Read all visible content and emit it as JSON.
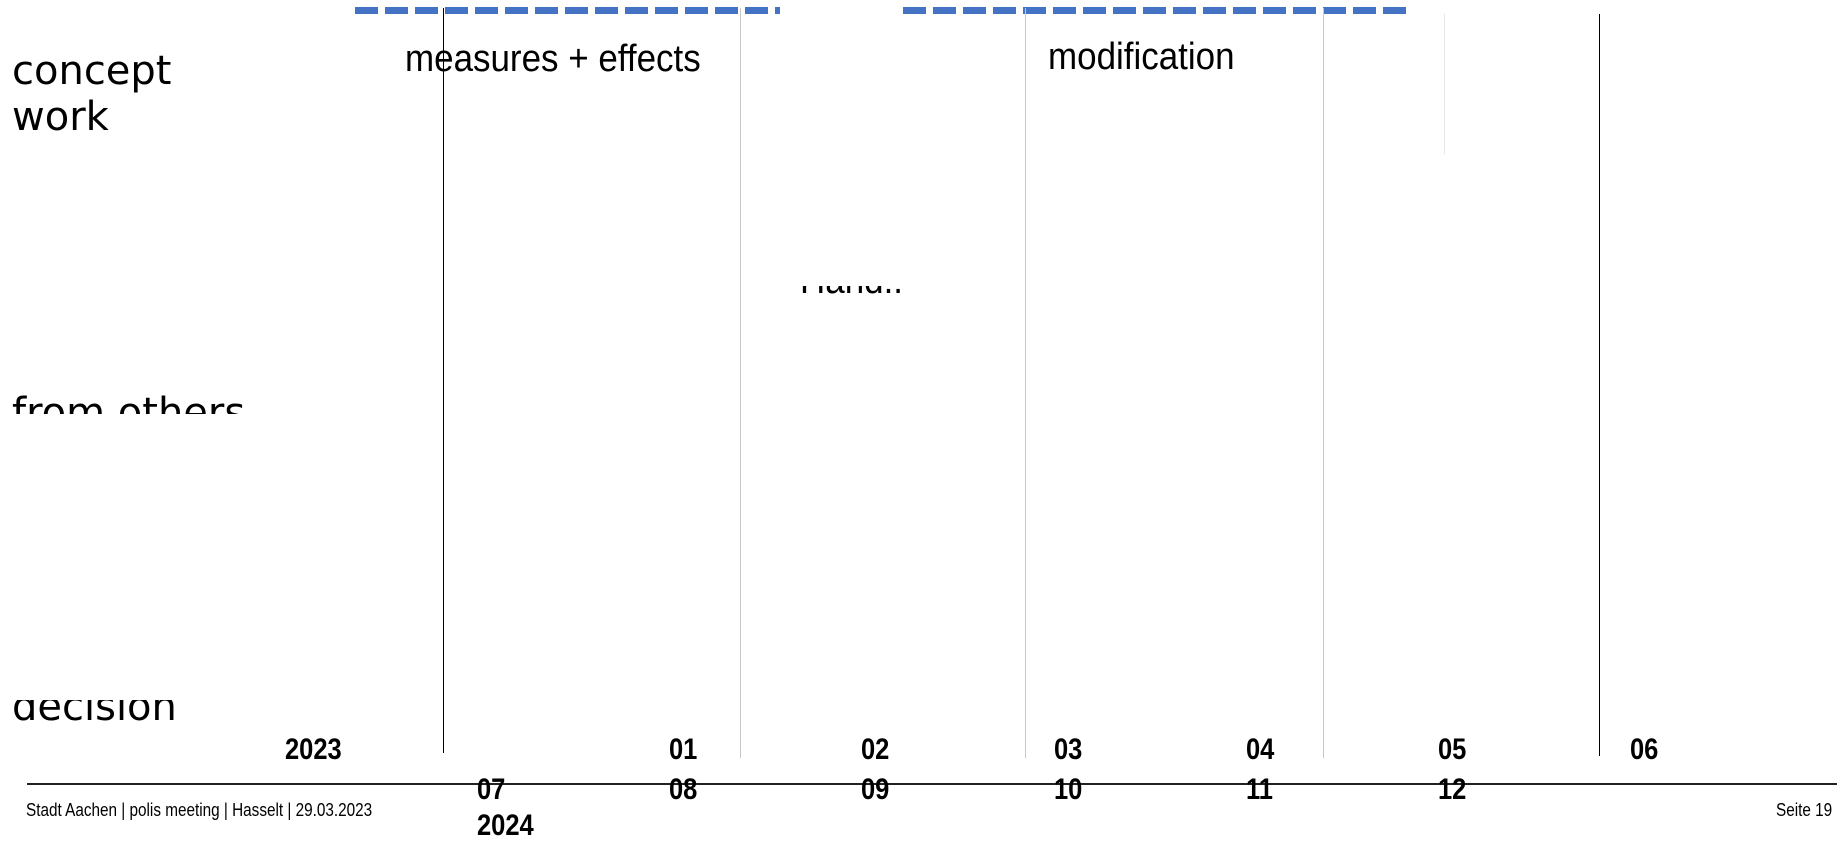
{
  "rows": {
    "concept_work": [
      "concept",
      "work"
    ],
    "from_others": "from others",
    "decision": "decision"
  },
  "phases": {
    "measures_effects": "measures + effects",
    "modification": "modification"
  },
  "timeline": {
    "year_start": "2023",
    "year_next": "2024",
    "top_ticks": [
      "01",
      "02",
      "03",
      "04",
      "05",
      "06"
    ],
    "bottom_ticks": [
      "07",
      "08",
      "09",
      "10",
      "11",
      "12"
    ],
    "partial_text": "Hand..."
  },
  "footer": {
    "left": "Stadt Aachen | polis meeting  |  Hasselt  |  29.03.2023",
    "right": "Seite 19"
  },
  "colors": {
    "accent_dash": "#4472c4"
  }
}
